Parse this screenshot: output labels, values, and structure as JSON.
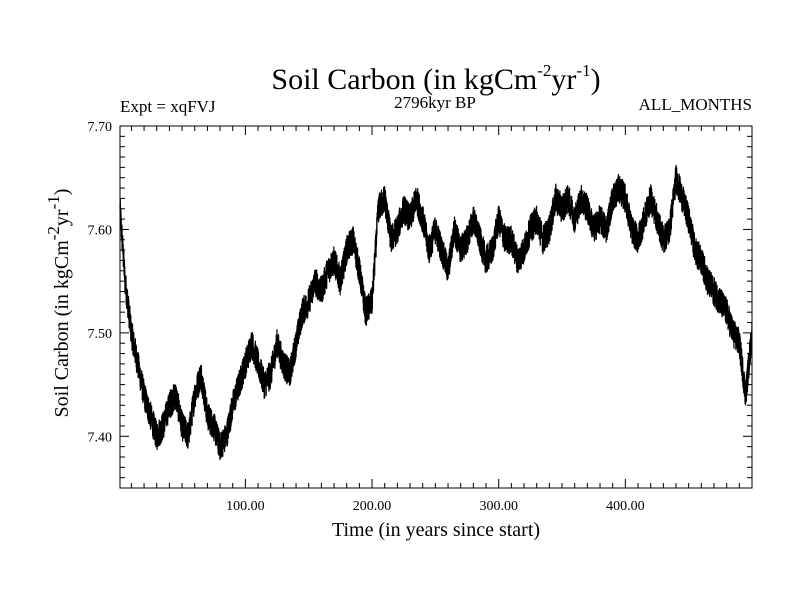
{
  "chart_data": {
    "type": "line",
    "title": {
      "prefix": "Soil Carbon (in kgCm",
      "exp1": "-2",
      "middle": "yr",
      "exp2": "-1",
      "suffix": ")"
    },
    "subtitle_left": "Expt = xqFVJ",
    "subtitle_center": "2796kyr BP",
    "subtitle_right": "ALL_MONTHS",
    "xlabel": "Time (in years since start)",
    "ylabel": {
      "prefix": "Soil Carbon (in kgCm",
      "exp1": "-2",
      "middle": "yr",
      "exp2": "-1",
      "suffix": ")"
    },
    "xlim": [
      1,
      500
    ],
    "ylim": [
      7.35,
      7.7
    ],
    "x_ticks": [
      100,
      200,
      300,
      400
    ],
    "x_tick_labels": [
      "100.00",
      "200.00",
      "300.00",
      "400.00"
    ],
    "y_ticks": [
      7.4,
      7.5,
      7.6,
      7.7
    ],
    "y_tick_labels": [
      "7.40",
      "7.50",
      "7.60",
      "7.70"
    ],
    "series": [
      {
        "name": "Soil Carbon",
        "color": "#000000",
        "x": [
          1,
          5,
          10,
          15,
          20,
          25,
          30,
          35,
          40,
          45,
          50,
          55,
          60,
          65,
          70,
          75,
          80,
          85,
          90,
          95,
          100,
          105,
          110,
          115,
          120,
          125,
          130,
          135,
          140,
          145,
          150,
          155,
          160,
          165,
          170,
          175,
          180,
          185,
          190,
          195,
          200,
          205,
          210,
          215,
          220,
          225,
          230,
          235,
          240,
          245,
          250,
          255,
          260,
          265,
          270,
          275,
          280,
          285,
          290,
          295,
          300,
          305,
          310,
          315,
          320,
          325,
          330,
          335,
          340,
          345,
          350,
          355,
          360,
          365,
          370,
          375,
          380,
          385,
          390,
          395,
          400,
          405,
          410,
          415,
          420,
          425,
          430,
          435,
          440,
          445,
          450,
          455,
          460,
          465,
          470,
          475,
          480,
          485,
          490,
          495,
          500
        ],
        "y": [
          7.62,
          7.55,
          7.5,
          7.47,
          7.44,
          7.42,
          7.4,
          7.41,
          7.43,
          7.44,
          7.41,
          7.4,
          7.44,
          7.46,
          7.42,
          7.41,
          7.39,
          7.4,
          7.43,
          7.45,
          7.47,
          7.49,
          7.47,
          7.45,
          7.46,
          7.49,
          7.47,
          7.46,
          7.49,
          7.52,
          7.53,
          7.55,
          7.54,
          7.56,
          7.57,
          7.55,
          7.58,
          7.59,
          7.56,
          7.52,
          7.53,
          7.62,
          7.63,
          7.59,
          7.6,
          7.62,
          7.61,
          7.63,
          7.61,
          7.58,
          7.6,
          7.58,
          7.56,
          7.6,
          7.58,
          7.59,
          7.61,
          7.59,
          7.57,
          7.58,
          7.61,
          7.59,
          7.59,
          7.57,
          7.58,
          7.6,
          7.61,
          7.59,
          7.6,
          7.63,
          7.62,
          7.63,
          7.61,
          7.63,
          7.62,
          7.6,
          7.61,
          7.6,
          7.63,
          7.64,
          7.63,
          7.6,
          7.59,
          7.61,
          7.63,
          7.61,
          7.59,
          7.6,
          7.65,
          7.63,
          7.61,
          7.58,
          7.57,
          7.55,
          7.54,
          7.53,
          7.52,
          7.5,
          7.49,
          7.44,
          7.5
        ]
      }
    ]
  }
}
